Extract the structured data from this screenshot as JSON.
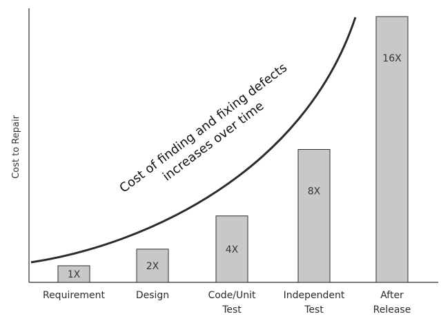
{
  "chart_data": {
    "type": "bar",
    "ylabel": "Cost to Repair",
    "xlabel": "",
    "categories": [
      [
        "Requirement"
      ],
      [
        "Design"
      ],
      [
        "Code/Unit",
        "Test"
      ],
      [
        "Independent",
        "Test"
      ],
      [
        "After",
        "Release"
      ]
    ],
    "values": [
      1,
      2,
      4,
      8,
      16
    ],
    "data_labels": [
      "1X",
      "2X",
      "4X",
      "8X",
      "16X"
    ],
    "ylim": [
      0,
      16.5
    ],
    "grid": false,
    "legend": "none",
    "bar_color": "#c8c8c8",
    "bar_edge_color": "#2b2b2b",
    "curve_color": "#2b2b2b",
    "annotation": {
      "line1": "Cost of finding and fixing defects",
      "line2": "increases over time"
    }
  }
}
